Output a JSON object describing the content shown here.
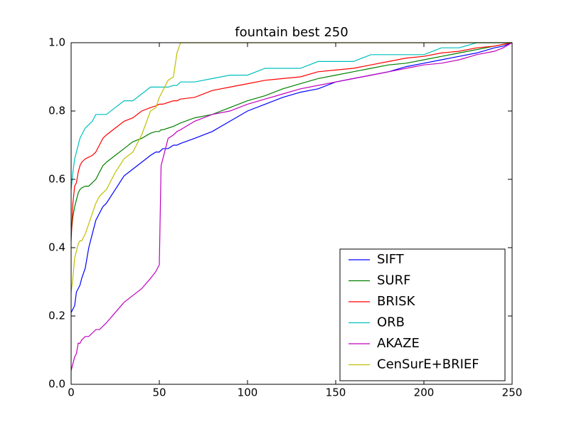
{
  "chart_data": {
    "type": "line",
    "title": "fountain best 250",
    "x": [
      0,
      1,
      2,
      3,
      4,
      5,
      6,
      8,
      10,
      12,
      14,
      16,
      18,
      20,
      25,
      30,
      35,
      40,
      45,
      48,
      50,
      51,
      52,
      55,
      58,
      60,
      62,
      70,
      80,
      90,
      100,
      110,
      120,
      130,
      140,
      150,
      160,
      170,
      180,
      190,
      200,
      210,
      220,
      230,
      240,
      245,
      250
    ],
    "series": [
      {
        "name": "SIFT",
        "color": "#0000ff",
        "values": [
          0.21,
          0.22,
          0.23,
          0.27,
          0.28,
          0.29,
          0.31,
          0.34,
          0.4,
          0.44,
          0.48,
          0.5,
          0.52,
          0.53,
          0.57,
          0.61,
          0.63,
          0.65,
          0.67,
          0.68,
          0.68,
          0.685,
          0.69,
          0.69,
          0.7,
          0.7,
          0.705,
          0.72,
          0.74,
          0.77,
          0.8,
          0.82,
          0.84,
          0.855,
          0.865,
          0.885,
          0.895,
          0.905,
          0.915,
          0.93,
          0.94,
          0.95,
          0.96,
          0.97,
          0.985,
          0.99,
          1.0
        ]
      },
      {
        "name": "SURF",
        "color": "#008000",
        "values": [
          0.44,
          0.49,
          0.52,
          0.54,
          0.56,
          0.57,
          0.575,
          0.58,
          0.58,
          0.59,
          0.6,
          0.62,
          0.64,
          0.65,
          0.67,
          0.69,
          0.71,
          0.72,
          0.735,
          0.74,
          0.74,
          0.745,
          0.745,
          0.75,
          0.755,
          0.76,
          0.765,
          0.78,
          0.79,
          0.81,
          0.83,
          0.845,
          0.865,
          0.88,
          0.895,
          0.905,
          0.915,
          0.925,
          0.935,
          0.94,
          0.95,
          0.96,
          0.97,
          0.98,
          0.99,
          0.995,
          1.0
        ]
      },
      {
        "name": "BRISK",
        "color": "#ff0000",
        "values": [
          0.42,
          0.53,
          0.58,
          0.59,
          0.62,
          0.64,
          0.65,
          0.66,
          0.665,
          0.67,
          0.68,
          0.7,
          0.72,
          0.73,
          0.75,
          0.77,
          0.78,
          0.8,
          0.81,
          0.815,
          0.82,
          0.82,
          0.82,
          0.825,
          0.83,
          0.83,
          0.835,
          0.84,
          0.86,
          0.87,
          0.88,
          0.89,
          0.895,
          0.9,
          0.915,
          0.92,
          0.925,
          0.935,
          0.945,
          0.955,
          0.96,
          0.97,
          0.975,
          0.985,
          0.99,
          0.995,
          1.0
        ]
      },
      {
        "name": "ORB",
        "color": "#00bfbf",
        "values": [
          0.57,
          0.62,
          0.66,
          0.68,
          0.7,
          0.72,
          0.73,
          0.75,
          0.76,
          0.77,
          0.79,
          0.79,
          0.79,
          0.79,
          0.81,
          0.83,
          0.83,
          0.85,
          0.87,
          0.87,
          0.87,
          0.87,
          0.87,
          0.87,
          0.875,
          0.875,
          0.885,
          0.885,
          0.895,
          0.905,
          0.905,
          0.925,
          0.925,
          0.925,
          0.945,
          0.945,
          0.945,
          0.965,
          0.965,
          0.965,
          0.965,
          0.985,
          0.985,
          1.0,
          1.0,
          1.0,
          1.0
        ]
      },
      {
        "name": "AKAZE",
        "color": "#bf00bf",
        "values": [
          0.04,
          0.06,
          0.08,
          0.09,
          0.12,
          0.12,
          0.13,
          0.14,
          0.14,
          0.15,
          0.16,
          0.16,
          0.17,
          0.18,
          0.21,
          0.24,
          0.26,
          0.28,
          0.31,
          0.33,
          0.35,
          0.64,
          0.66,
          0.72,
          0.73,
          0.74,
          0.745,
          0.77,
          0.79,
          0.8,
          0.82,
          0.835,
          0.85,
          0.865,
          0.875,
          0.885,
          0.895,
          0.905,
          0.915,
          0.925,
          0.935,
          0.94,
          0.95,
          0.965,
          0.975,
          0.985,
          1.0
        ]
      },
      {
        "name": "CenSurE+BRIEF",
        "color": "#bfbf00",
        "values": [
          0.27,
          0.31,
          0.37,
          0.39,
          0.41,
          0.42,
          0.42,
          0.44,
          0.47,
          0.5,
          0.53,
          0.55,
          0.56,
          0.57,
          0.62,
          0.66,
          0.68,
          0.73,
          0.8,
          0.81,
          0.84,
          0.85,
          0.86,
          0.89,
          0.9,
          0.97,
          1.0,
          1.0,
          1.0,
          1.0,
          1.0,
          1.0,
          1.0,
          1.0,
          1.0,
          1.0,
          1.0,
          1.0,
          1.0,
          1.0,
          1.0,
          1.0,
          1.0,
          1.0,
          1.0,
          1.0,
          1.0
        ]
      }
    ],
    "xlim": [
      0,
      250
    ],
    "xticks": [
      0,
      50,
      100,
      150,
      200,
      250
    ],
    "ylim": [
      0,
      1
    ],
    "yticks": [
      {
        "value": 0,
        "label": "0.0"
      },
      0.2,
      0.4,
      0.6,
      0.8,
      {
        "value": 1,
        "label": "1.0"
      }
    ],
    "legend": "lower right"
  }
}
